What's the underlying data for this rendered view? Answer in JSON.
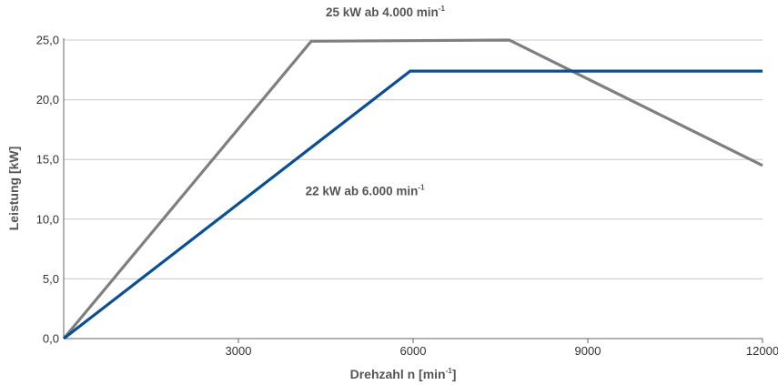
{
  "chart_data": {
    "type": "line",
    "xlabel": "Drehzahl n [min",
    "xlabel_sup": "-1",
    "xlabel_suffix": "]",
    "ylabel": "Leistung [kW]",
    "xlim": [
      0,
      12000
    ],
    "ylim": [
      0,
      25
    ],
    "x_ticks": [
      3000,
      6000,
      9000,
      12000
    ],
    "x_tick_labels": [
      "3000",
      "6000",
      "9000",
      "12000"
    ],
    "y_ticks": [
      0,
      5,
      10,
      15,
      20,
      25
    ],
    "y_tick_labels": [
      "0,0",
      "5,0",
      "10,0",
      "15,0",
      "20,0",
      "25,0"
    ],
    "grid": "horizontal",
    "series": [
      {
        "color": "#7f7f7f",
        "x": [
          0,
          4250,
          7650,
          12000
        ],
        "y": [
          0,
          24.9,
          25.0,
          14.5
        ]
      },
      {
        "color": "#0a4f96",
        "x": [
          0,
          5950,
          12000
        ],
        "y": [
          0,
          22.4,
          22.4
        ]
      }
    ],
    "annotations": [
      {
        "text": "25 kW ab 4.000 min",
        "sup": "-1",
        "x": 4500,
        "y": 27.0
      },
      {
        "text": "22 kW ab 6.000 min",
        "sup": "-1",
        "x": 4150,
        "y": 12.0
      }
    ]
  }
}
